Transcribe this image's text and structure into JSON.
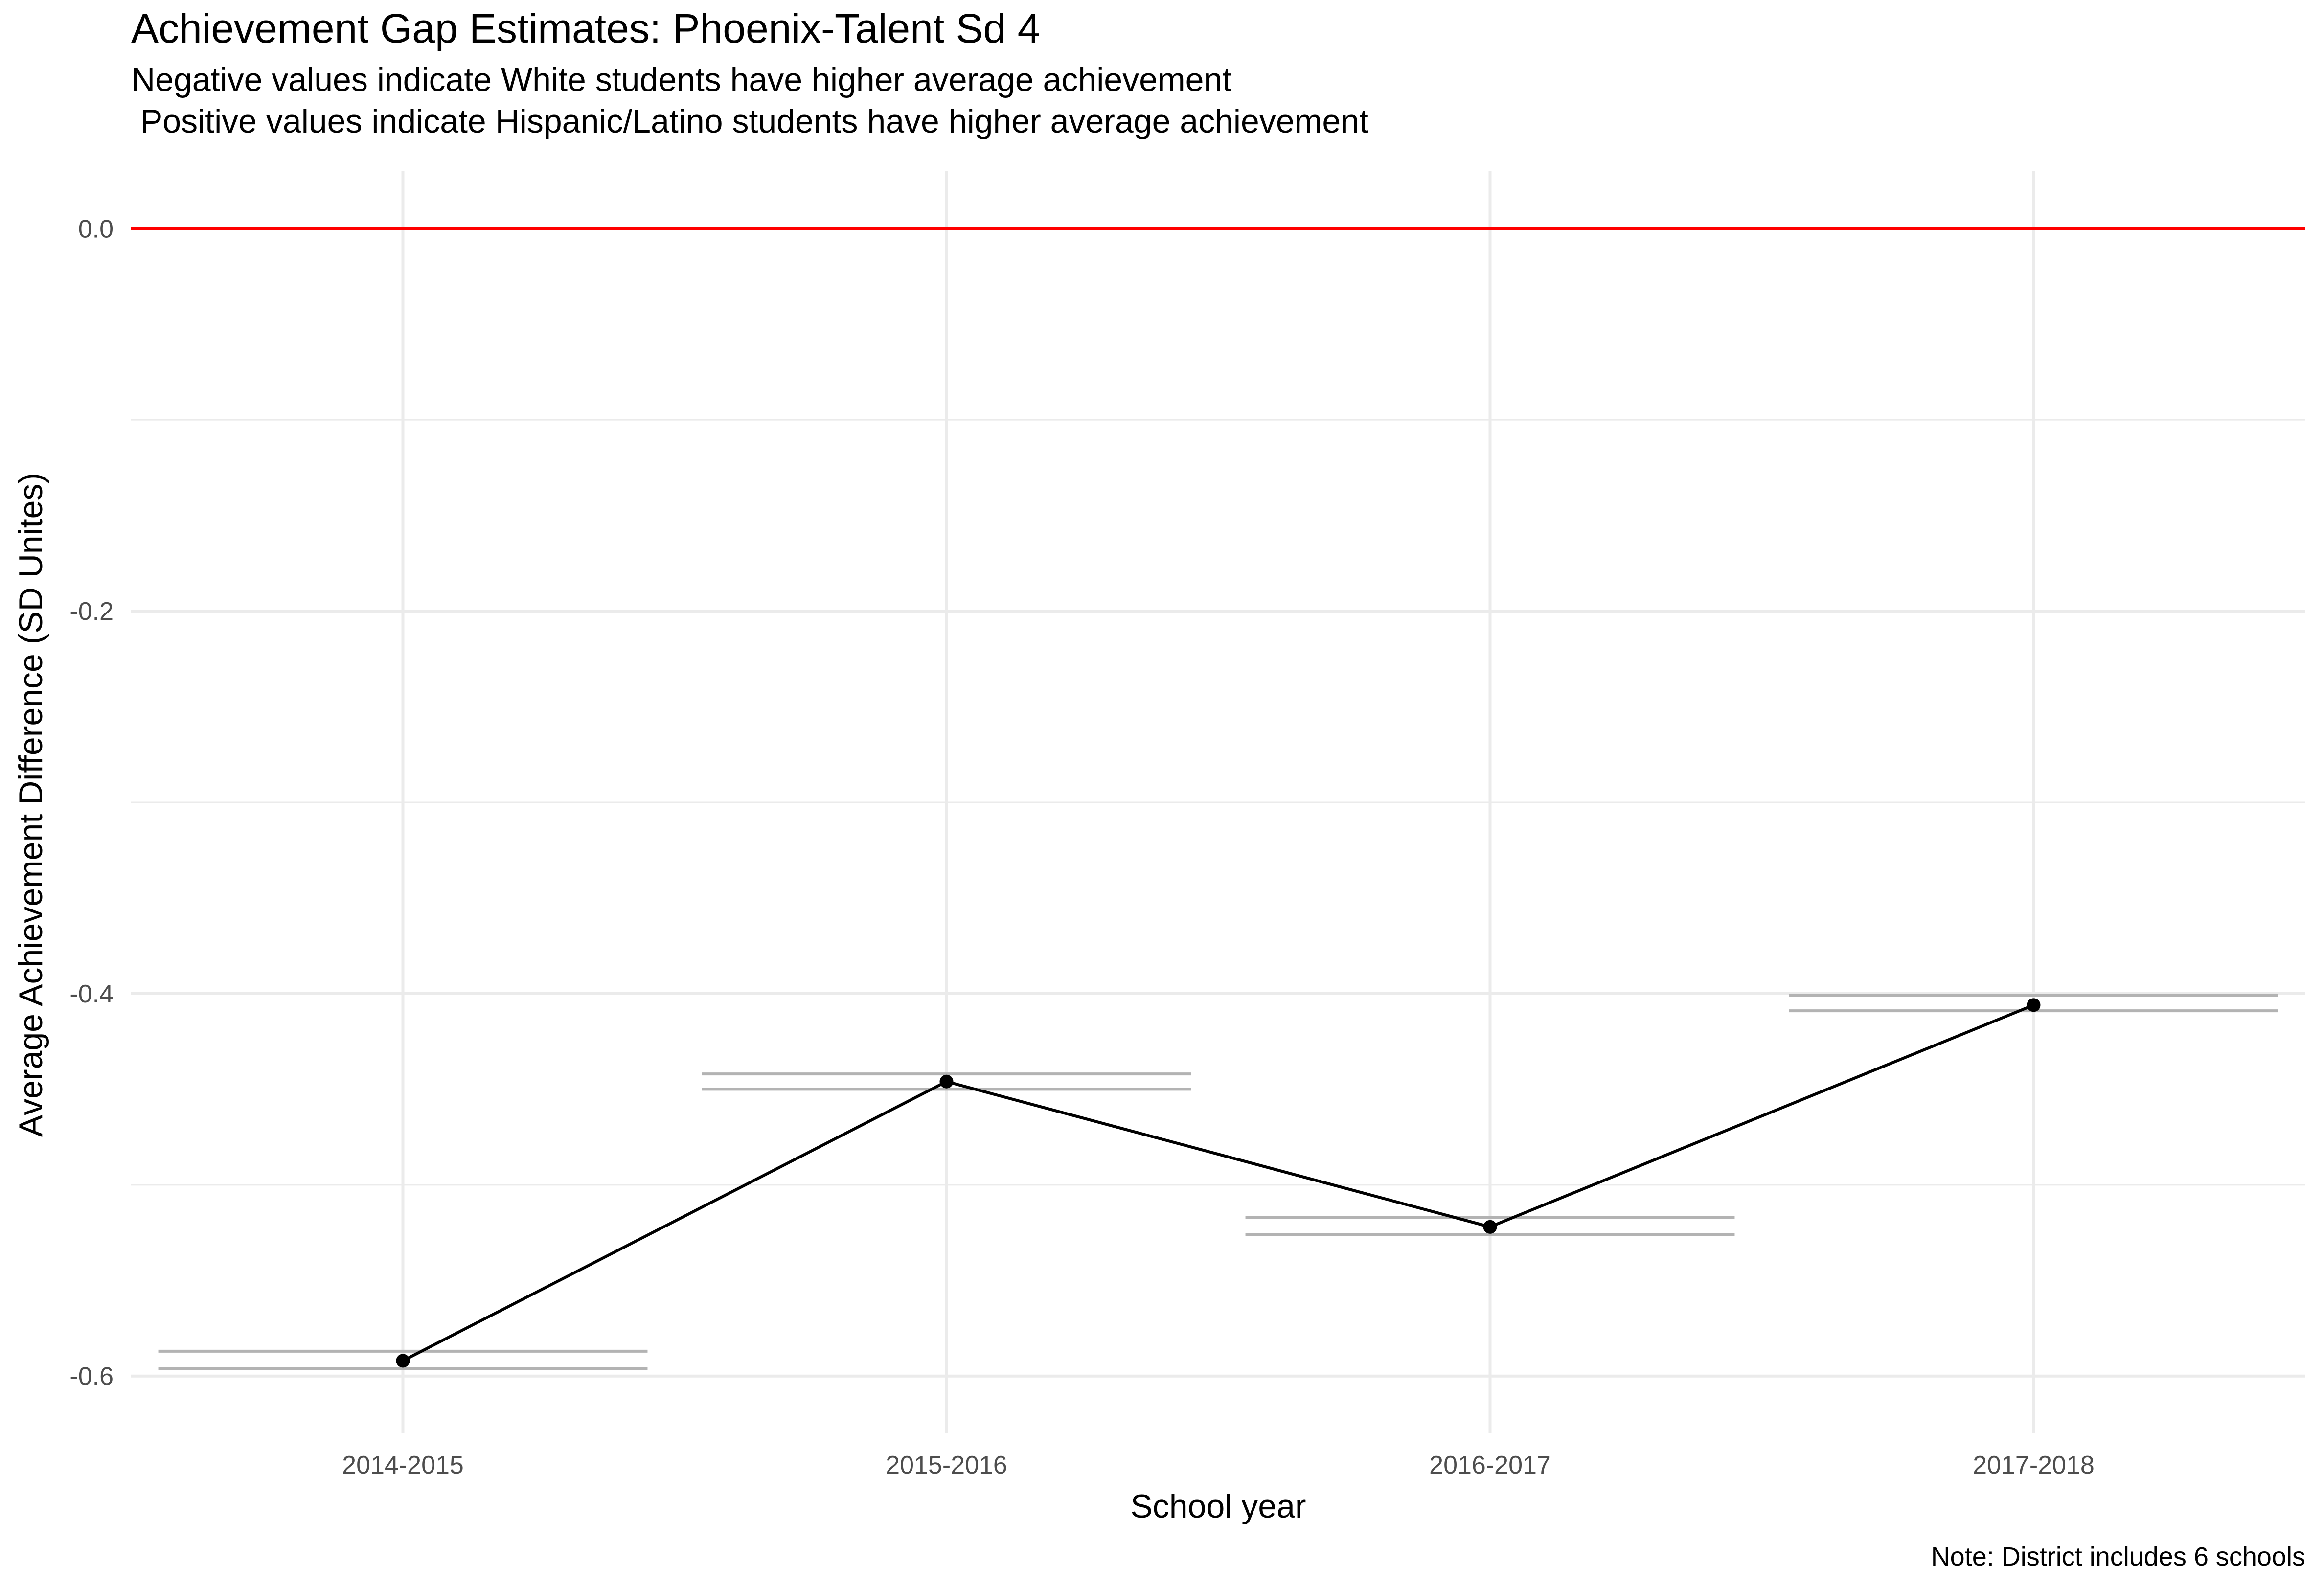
{
  "chart_data": {
    "type": "line",
    "title": "Achievement Gap Estimates: Phoenix-Talent Sd 4",
    "subtitle_lines": [
      "Negative values indicate White students have higher average achievement",
      " Positive values indicate Hispanic/Latino students have higher average achievement"
    ],
    "xlabel": "School year",
    "ylabel": "Average Achievement Difference (SD Unites)",
    "caption": "Note: District includes 6 schools",
    "categories": [
      "2014-2015",
      "2015-2016",
      "2016-2017",
      "2017-2018"
    ],
    "series": [
      {
        "values": [
          -0.592,
          -0.446,
          -0.522,
          -0.406
        ]
      }
    ],
    "error_bars": [
      {
        "lower": -0.596,
        "upper": -0.587
      },
      {
        "lower": -0.45,
        "upper": -0.442
      },
      {
        "lower": -0.526,
        "upper": -0.517
      },
      {
        "lower": -0.409,
        "upper": -0.401
      }
    ],
    "reference_line": {
      "y": 0.0,
      "color": "#ff0000"
    },
    "ylim": [
      -0.63,
      0.03
    ],
    "yticks": [
      0.0,
      -0.2,
      -0.4,
      -0.6
    ],
    "ytick_labels": [
      "0.0",
      "-0.2",
      "-0.4",
      "-0.6"
    ],
    "grid": true,
    "colors": {
      "line": "#000000",
      "point": "#000000",
      "errorbar": "#b3b3b3",
      "grid": "#ebebeb"
    }
  }
}
